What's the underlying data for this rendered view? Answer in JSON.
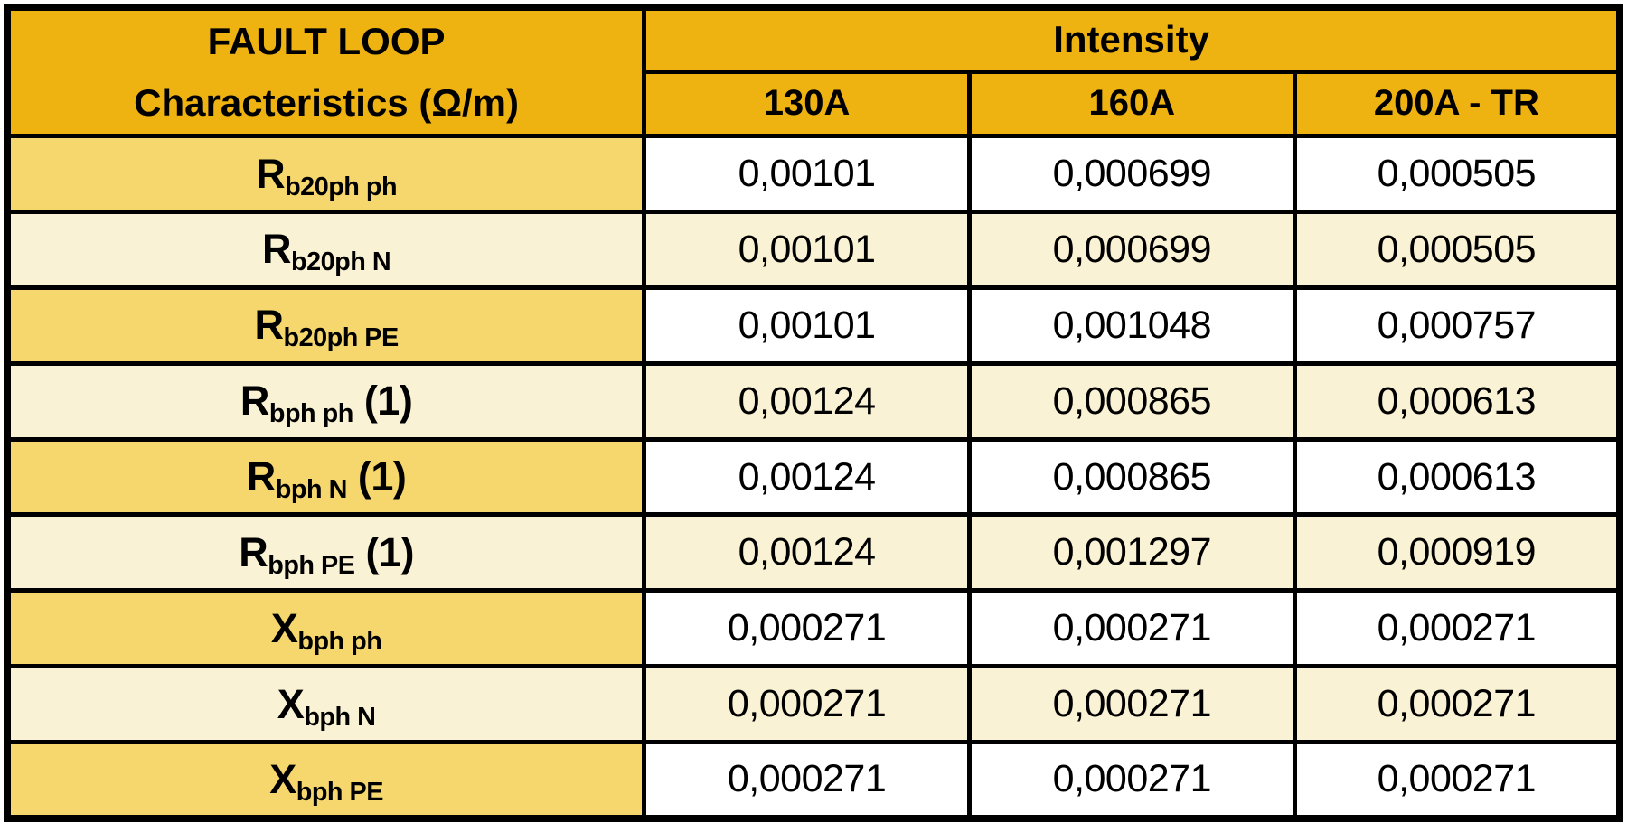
{
  "colors": {
    "header_gold": "#eeb211",
    "row_label_gold": "#f5d76e",
    "row_cream": "#faf2d4",
    "cell_white": "#ffffff",
    "border_black": "#000000"
  },
  "chart_data": {
    "type": "table",
    "title": "FAULT LOOP Characteristics (Ω/m)",
    "corner_header_line1": "FAULT LOOP",
    "corner_header_line2": "Characteristics (Ω/m)",
    "column_group_header": "Intensity",
    "columns": [
      "130A",
      "160A",
      "200A - TR"
    ],
    "rows": [
      {
        "label": "R b20ph ph",
        "base": "R",
        "sub": "b20ph ph",
        "suffix": "",
        "values": [
          "0,00101",
          "0,000699",
          "0,000505"
        ]
      },
      {
        "label": "R b20ph N",
        "base": "R",
        "sub": "b20ph N",
        "suffix": "",
        "values": [
          "0,00101",
          "0,000699",
          "0,000505"
        ]
      },
      {
        "label": "R b20ph PE",
        "base": "R",
        "sub": "b20ph PE",
        "suffix": "",
        "values": [
          "0,00101",
          "0,001048",
          "0,000757"
        ]
      },
      {
        "label": "R bph ph (1)",
        "base": "R",
        "sub": "bph ph",
        "suffix": " (1)",
        "values": [
          "0,00124",
          "0,000865",
          "0,000613"
        ]
      },
      {
        "label": "R bph N (1)",
        "base": "R",
        "sub": "bph N",
        "suffix": " (1)",
        "values": [
          "0,00124",
          "0,000865",
          "0,000613"
        ]
      },
      {
        "label": "R bph PE (1)",
        "base": "R",
        "sub": "bph PE",
        "suffix": " (1)",
        "values": [
          "0,00124",
          "0,001297",
          "0,000919"
        ]
      },
      {
        "label": "X bph ph",
        "base": "X",
        "sub": "bph ph",
        "suffix": "",
        "values": [
          "0,000271",
          "0,000271",
          "0,000271"
        ]
      },
      {
        "label": "X bph N",
        "base": "X",
        "sub": "bph N",
        "suffix": "",
        "values": [
          "0,000271",
          "0,000271",
          "0,000271"
        ]
      },
      {
        "label": "X bph PE",
        "base": "X",
        "sub": "bph PE",
        "suffix": "",
        "values": [
          "0,000271",
          "0,000271",
          "0,000271"
        ]
      }
    ]
  }
}
